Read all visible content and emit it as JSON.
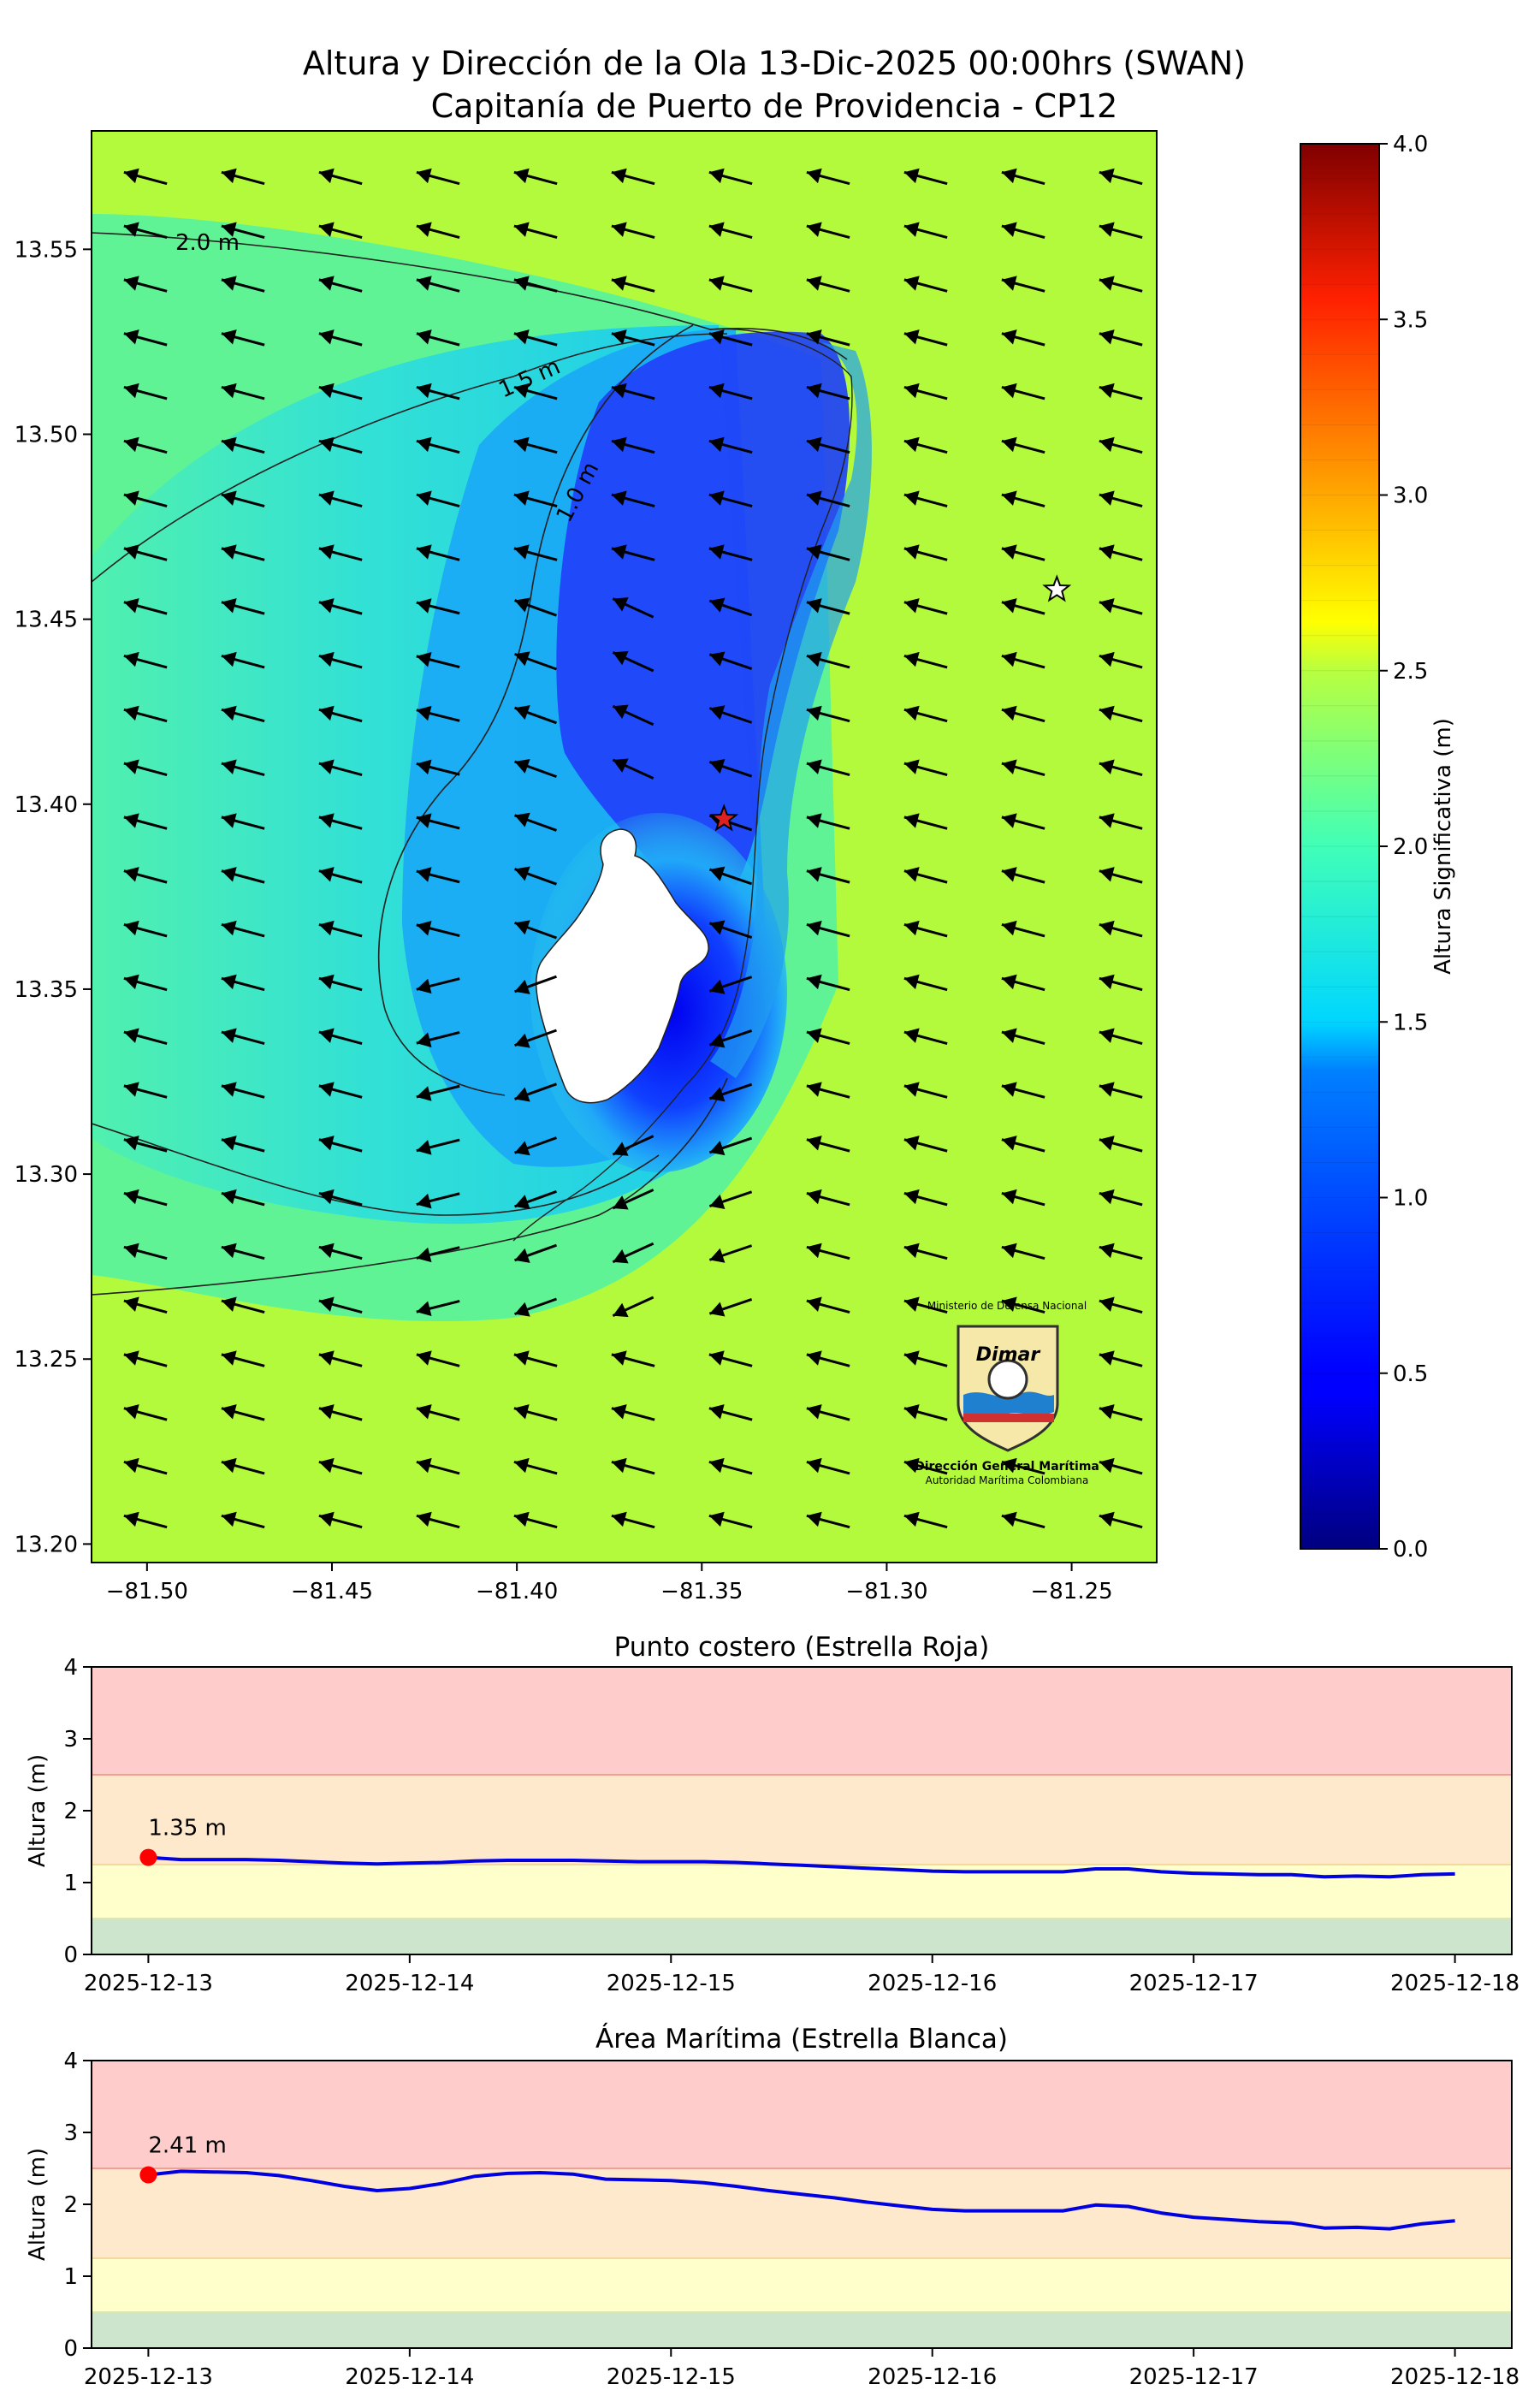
{
  "figure": {
    "title_line1": "Altura y Dirección de la Ola 13-Dic-2025 00:00hrs (SWAN)",
    "title_line2": "Capitanía de Puerto de Providencia - CP12"
  },
  "chart_data": [
    {
      "type": "heatmap",
      "x_ticks": [
        "−81.50",
        "−81.45",
        "−81.40",
        "−81.35",
        "−81.30",
        "−81.25"
      ],
      "x_tick_values": [
        -81.5,
        -81.45,
        -81.4,
        -81.35,
        -81.3,
        -81.25
      ],
      "y_ticks": [
        "13.20",
        "13.25",
        "13.30",
        "13.35",
        "13.40",
        "13.45",
        "13.50",
        "13.55"
      ],
      "y_tick_values": [
        13.2,
        13.25,
        13.3,
        13.35,
        13.4,
        13.45,
        13.5,
        13.55
      ],
      "xlim": [
        -81.515,
        -81.227
      ],
      "ylim": [
        13.195,
        13.582
      ],
      "contour_labels": [
        "2.0 m",
        "1.5 m",
        "1.0 m"
      ],
      "colorbar": {
        "label": "Altura Significativa (m)",
        "ticks": [
          "0.0",
          "0.5",
          "1.0",
          "1.5",
          "2.0",
          "2.5",
          "3.0",
          "3.5",
          "4.0"
        ],
        "range": [
          0,
          4
        ],
        "colormap": "jet"
      },
      "markers": [
        {
          "type": "red-star",
          "lon": -81.344,
          "lat": 13.396,
          "color": "#e02020"
        },
        {
          "type": "white-star",
          "lon": -81.254,
          "lat": 13.458,
          "color": "#ffffff"
        }
      ],
      "logo": {
        "top_text": "Ministerio de Defensa Nacional",
        "brand": "Dimar",
        "line1": "Dirección General Marítima",
        "line2": "Autoridad Marítima Colombiana"
      },
      "wave_direction": "from east (arrows pointing west)"
    },
    {
      "type": "line",
      "title": "Punto costero (Estrella Roja)",
      "ylabel": "Altura (m)",
      "ylim": [
        0,
        4
      ],
      "y_ticks": [
        "0",
        "1",
        "2",
        "3",
        "4"
      ],
      "x_ticks": [
        "2025-12-13",
        "2025-12-14",
        "2025-12-15",
        "2025-12-16",
        "2025-12-17",
        "2025-12-18"
      ],
      "x_range": [
        "2025-12-13",
        "2025-12-18"
      ],
      "thresholds": [
        {
          "from": 0,
          "to": 0.5,
          "color": "#cce5cc"
        },
        {
          "from": 0.5,
          "to": 1.25,
          "color": "#ffffcc"
        },
        {
          "from": 1.25,
          "to": 2.5,
          "color": "#ffe9cc"
        },
        {
          "from": 2.5,
          "to": 4,
          "color": "#ffcccc"
        }
      ],
      "x_days": [
        0,
        0.125,
        0.25,
        0.375,
        0.5,
        0.625,
        0.75,
        0.875,
        1,
        1.125,
        1.25,
        1.375,
        1.5,
        1.625,
        1.75,
        1.875,
        2,
        2.125,
        2.25,
        2.375,
        2.5,
        2.625,
        2.75,
        2.875,
        3,
        3.125,
        3.25,
        3.375,
        3.5,
        3.625,
        3.75,
        3.875,
        4,
        4.125,
        4.25,
        4.375,
        4.5,
        4.625,
        4.75,
        4.875,
        5
      ],
      "values": [
        1.35,
        1.32,
        1.32,
        1.32,
        1.31,
        1.29,
        1.27,
        1.26,
        1.27,
        1.28,
        1.3,
        1.31,
        1.31,
        1.31,
        1.3,
        1.29,
        1.29,
        1.29,
        1.28,
        1.26,
        1.24,
        1.22,
        1.2,
        1.18,
        1.16,
        1.15,
        1.15,
        1.15,
        1.15,
        1.19,
        1.19,
        1.15,
        1.13,
        1.12,
        1.11,
        1.11,
        1.08,
        1.09,
        1.08,
        1.11,
        1.12
      ],
      "highlight": {
        "x_day": 0,
        "value": 1.35,
        "label": "1.35 m",
        "color": "#ff0000"
      },
      "line_color": "#0000e0"
    },
    {
      "type": "line",
      "title": "Área Marítima (Estrella Blanca)",
      "ylabel": "Altura (m)",
      "ylim": [
        0,
        4
      ],
      "y_ticks": [
        "0",
        "1",
        "2",
        "3",
        "4"
      ],
      "x_ticks": [
        "2025-12-13",
        "2025-12-14",
        "2025-12-15",
        "2025-12-16",
        "2025-12-17",
        "2025-12-18"
      ],
      "x_range": [
        "2025-12-13",
        "2025-12-18"
      ],
      "thresholds": [
        {
          "from": 0,
          "to": 0.5,
          "color": "#cce5cc"
        },
        {
          "from": 0.5,
          "to": 1.25,
          "color": "#ffffcc"
        },
        {
          "from": 1.25,
          "to": 2.5,
          "color": "#ffe9cc"
        },
        {
          "from": 2.5,
          "to": 4,
          "color": "#ffcccc"
        }
      ],
      "x_days": [
        0,
        0.125,
        0.25,
        0.375,
        0.5,
        0.625,
        0.75,
        0.875,
        1,
        1.125,
        1.25,
        1.375,
        1.5,
        1.625,
        1.75,
        1.875,
        2,
        2.125,
        2.25,
        2.375,
        2.5,
        2.625,
        2.75,
        2.875,
        3,
        3.125,
        3.25,
        3.375,
        3.5,
        3.625,
        3.75,
        3.875,
        4,
        4.125,
        4.25,
        4.375,
        4.5,
        4.625,
        4.75,
        4.875,
        5
      ],
      "values": [
        2.41,
        2.46,
        2.45,
        2.44,
        2.4,
        2.33,
        2.25,
        2.19,
        2.22,
        2.29,
        2.39,
        2.43,
        2.44,
        2.42,
        2.35,
        2.34,
        2.33,
        2.3,
        2.25,
        2.19,
        2.14,
        2.09,
        2.03,
        1.98,
        1.93,
        1.91,
        1.91,
        1.91,
        1.91,
        1.99,
        1.97,
        1.88,
        1.82,
        1.79,
        1.76,
        1.74,
        1.67,
        1.68,
        1.66,
        1.73,
        1.77
      ],
      "highlight": {
        "x_day": 0,
        "value": 2.41,
        "label": "2.41 m",
        "color": "#ff0000"
      },
      "line_color": "#0000e0"
    }
  ]
}
